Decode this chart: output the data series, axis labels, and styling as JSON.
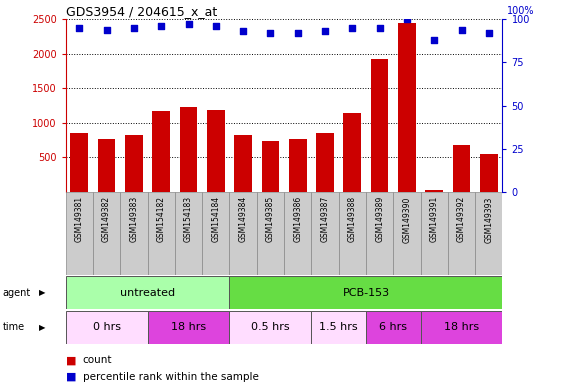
{
  "title": "GDS3954 / 204615_x_at",
  "samples": [
    "GSM149381",
    "GSM149382",
    "GSM149383",
    "GSM154182",
    "GSM154183",
    "GSM154184",
    "GSM149384",
    "GSM149385",
    "GSM149386",
    "GSM149387",
    "GSM149388",
    "GSM149389",
    "GSM149390",
    "GSM149391",
    "GSM149392",
    "GSM149393"
  ],
  "counts": [
    860,
    760,
    820,
    1170,
    1230,
    1190,
    830,
    740,
    760,
    850,
    1150,
    1920,
    2450,
    30,
    680,
    555
  ],
  "percentile_ranks": [
    95,
    94,
    95,
    96,
    97,
    96,
    93,
    92,
    92,
    93,
    95,
    95,
    100,
    88,
    94,
    92
  ],
  "ylim_left": [
    0,
    2500
  ],
  "ylim_right": [
    0,
    100
  ],
  "yticks_left": [
    500,
    1000,
    1500,
    2000,
    2500
  ],
  "yticks_right": [
    0,
    25,
    50,
    75,
    100
  ],
  "bar_color": "#cc0000",
  "dot_color": "#0000cc",
  "agent_groups": [
    {
      "label": "untreated",
      "start": 0,
      "end": 6,
      "color": "#aaffaa"
    },
    {
      "label": "PCB-153",
      "start": 6,
      "end": 16,
      "color": "#66dd44"
    }
  ],
  "time_groups": [
    {
      "label": "0 hrs",
      "start": 0,
      "end": 3,
      "color": "#ffddff"
    },
    {
      "label": "18 hrs",
      "start": 3,
      "end": 6,
      "color": "#dd44dd"
    },
    {
      "label": "0.5 hrs",
      "start": 6,
      "end": 9,
      "color": "#ffddff"
    },
    {
      "label": "1.5 hrs",
      "start": 9,
      "end": 11,
      "color": "#ffddff"
    },
    {
      "label": "6 hrs",
      "start": 11,
      "end": 13,
      "color": "#dd44dd"
    },
    {
      "label": "18 hrs",
      "start": 13,
      "end": 16,
      "color": "#dd44dd"
    }
  ],
  "left_axis_color": "#cc0000",
  "right_axis_color": "#0000cc",
  "cell_bg": "#cccccc",
  "plot_bg": "#ffffff",
  "legend_count_color": "#cc0000",
  "legend_pct_color": "#0000cc"
}
